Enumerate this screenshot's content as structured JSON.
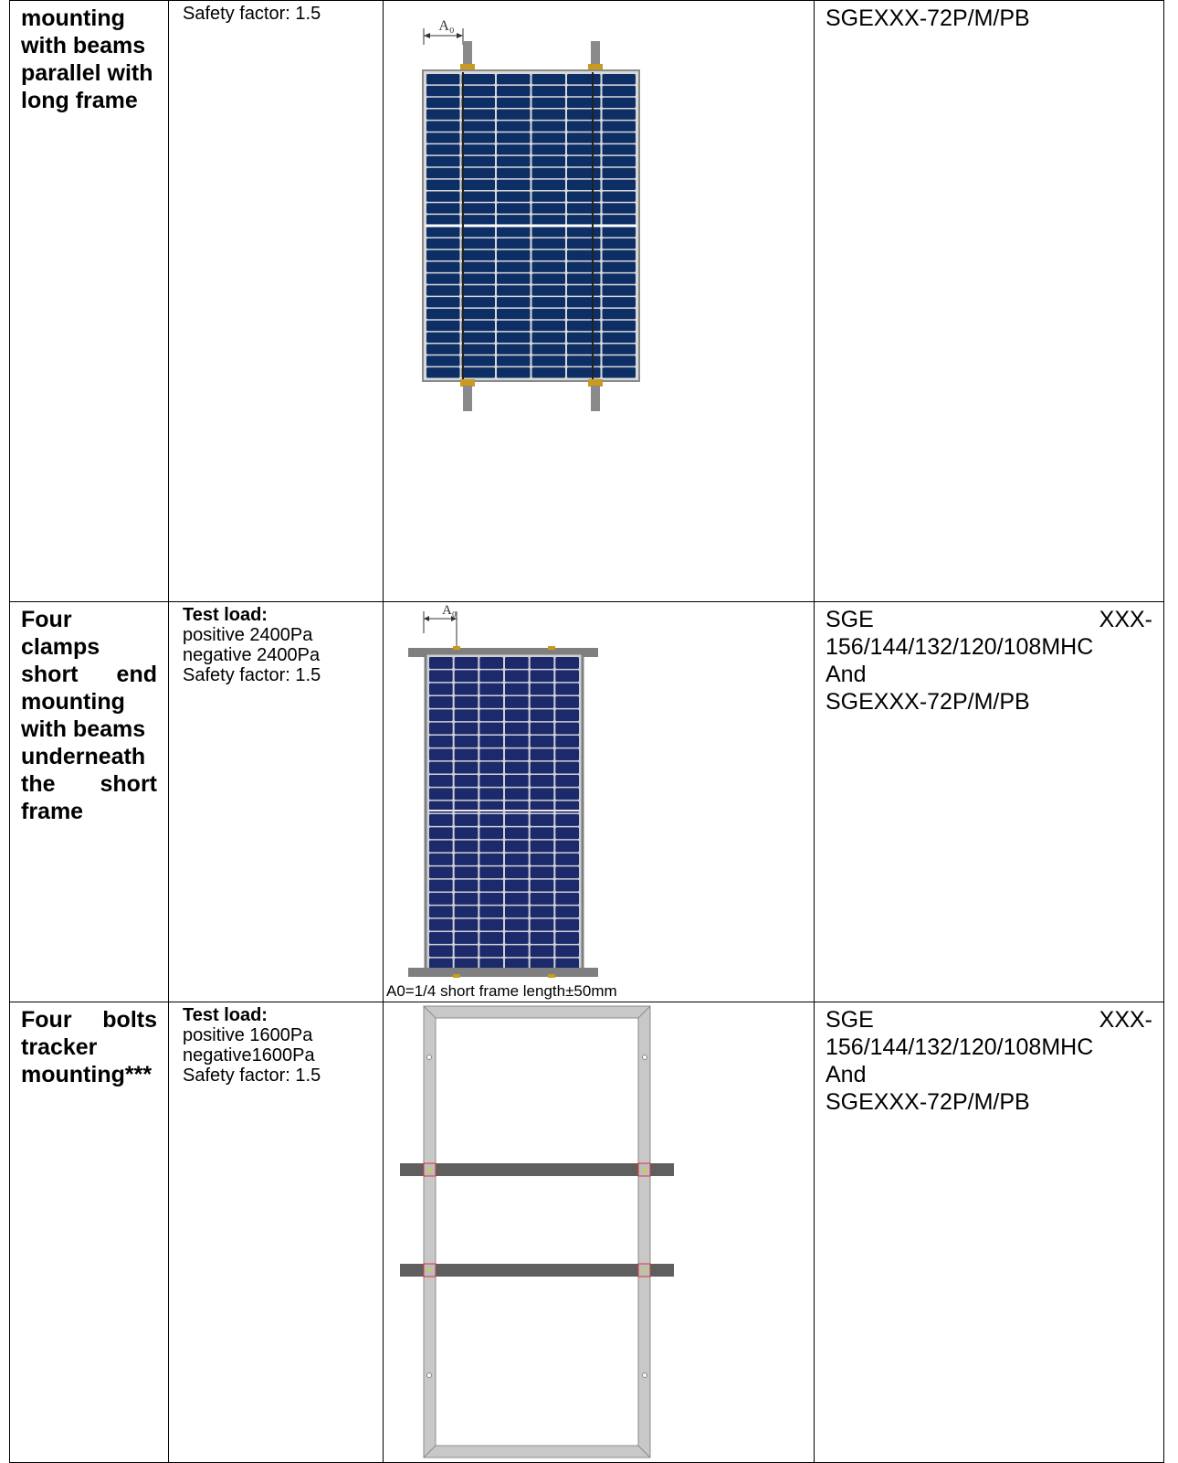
{
  "rows": [
    {
      "method_lines": [
        "mounting",
        "with beams",
        "parallel with",
        "long frame"
      ],
      "load_label": "",
      "load_lines": [
        "Safety factor: 1.5"
      ],
      "figure_label": "A₀",
      "figure_caption": "",
      "models_line1_left": "",
      "models_line1_right": "",
      "models_lines": [
        "SGEXXX-72P/M/PB"
      ]
    },
    {
      "method_lines": [
        "Four",
        "clamps",
        "short end",
        "mounting",
        "with beams",
        "underneath",
        "the short",
        "frame"
      ],
      "load_label": "Test load:",
      "load_lines": [
        "positive 2400Pa",
        "negative 2400Pa",
        "Safety factor: 1.5"
      ],
      "figure_label": "A₀",
      "figure_caption": "A0=1/4 short frame length±50mm",
      "models_line1_left": "SGE",
      "models_line1_right": "XXX-",
      "models_lines": [
        "156/144/132/120/108MHC",
        "And",
        "SGEXXX-72P/M/PB"
      ]
    },
    {
      "method_lines": [
        "Four bolts",
        "tracker",
        "mounting***"
      ],
      "load_label": "Test load:",
      "load_lines": [
        "positive 1600Pa",
        "negative1600Pa",
        "Safety factor: 1.5"
      ],
      "figure_label": "",
      "figure_caption": "",
      "models_line1_left": "SGE",
      "models_line1_right": "XXX-",
      "models_lines": [
        "156/144/132/120/108MHC",
        "And",
        "SGEXXX-72P/M/PB"
      ]
    }
  ],
  "colors": {
    "panel_cell": "#0d2f66",
    "panel_cell_dark": "#1c2a6b",
    "frame": "#8a8a8a",
    "clamp": "#c99a1f",
    "tracker_frame": "#c8c8c8",
    "tracker_beam": "#5f5f5f"
  }
}
